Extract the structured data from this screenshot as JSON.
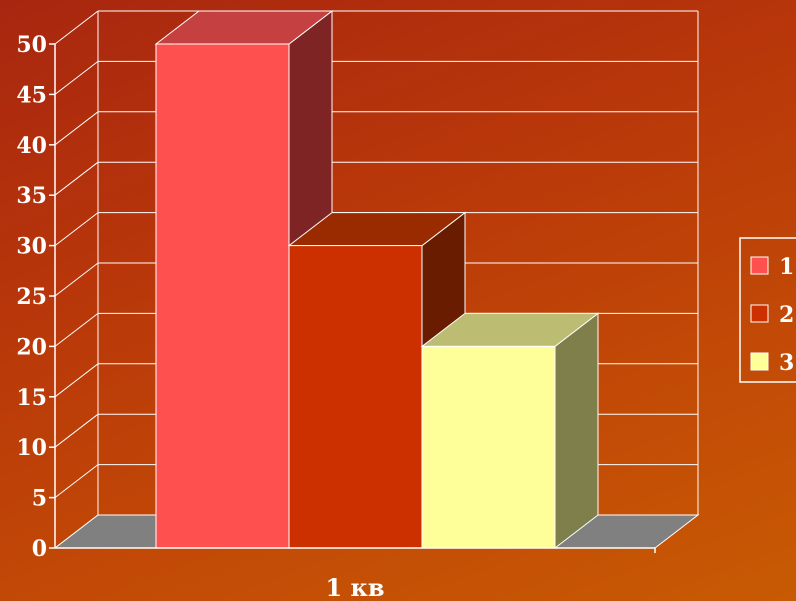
{
  "chart_data": {
    "type": "bar",
    "categories": [
      "1 кв"
    ],
    "series": [
      {
        "name": "1",
        "values": [
          50
        ],
        "color": "#ff5050",
        "top_color": "#c54040",
        "side_color": "#7e2424"
      },
      {
        "name": "2",
        "values": [
          30
        ],
        "color": "#cc3000",
        "top_color": "#9a2a00",
        "side_color": "#6a1c00"
      },
      {
        "name": "3",
        "values": [
          20
        ],
        "color": "#ffff99",
        "top_color": "#bcbd72",
        "side_color": "#7e7f4a"
      }
    ],
    "yticks": [
      "0",
      "5",
      "10",
      "15",
      "20",
      "25",
      "30",
      "35",
      "40",
      "45",
      "50"
    ],
    "ylim": [
      0,
      50
    ],
    "grid": true,
    "legend": "right",
    "title": "",
    "xlabel": "",
    "ylabel": ""
  }
}
